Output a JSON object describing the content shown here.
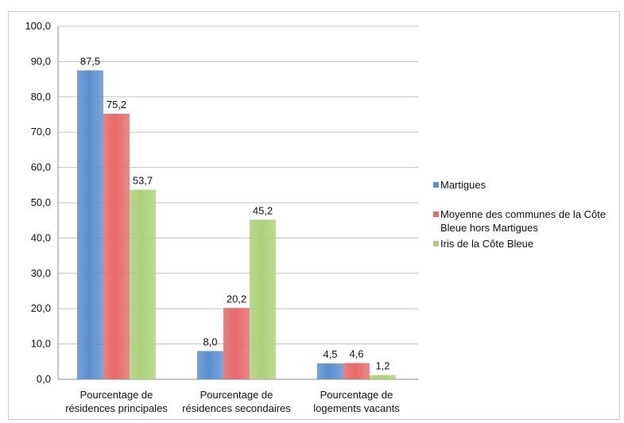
{
  "chart_data": {
    "type": "bar",
    "categories": [
      [
        "Pourcentage de",
        "résidences principales"
      ],
      [
        "Pourcentage de",
        "résidences secondaires"
      ],
      [
        "Pourcentage de",
        "logements vacants"
      ]
    ],
    "series": [
      {
        "name": "Martigues",
        "values": [
          87.5,
          8.0,
          4.5
        ],
        "labels": [
          "87,5",
          "8,0",
          "4,5"
        ],
        "color": "#5b8fd0"
      },
      {
        "name": "Moyenne des communes de la Côte Bleue hors Martigues",
        "name_lines": [
          "Moyenne des communes de la Côte",
          "Bleue hors Martigues"
        ],
        "values": [
          75.2,
          20.2,
          4.6
        ],
        "labels": [
          "75,2",
          "20,2",
          "4,6"
        ],
        "color": "#e66a6a"
      },
      {
        "name": "Iris de la Côte Bleue",
        "values": [
          53.7,
          45.2,
          1.2
        ],
        "labels": [
          "53,7",
          "45,2",
          "1,2"
        ],
        "color": "#acd17a"
      }
    ],
    "yticks": [
      "0,0",
      "10,0",
      "20,0",
      "30,0",
      "40,0",
      "50,0",
      "60,0",
      "70,0",
      "80,0",
      "90,0",
      "100,0"
    ],
    "ylim": [
      0,
      100
    ],
    "grid": true,
    "legend_position": "right"
  }
}
